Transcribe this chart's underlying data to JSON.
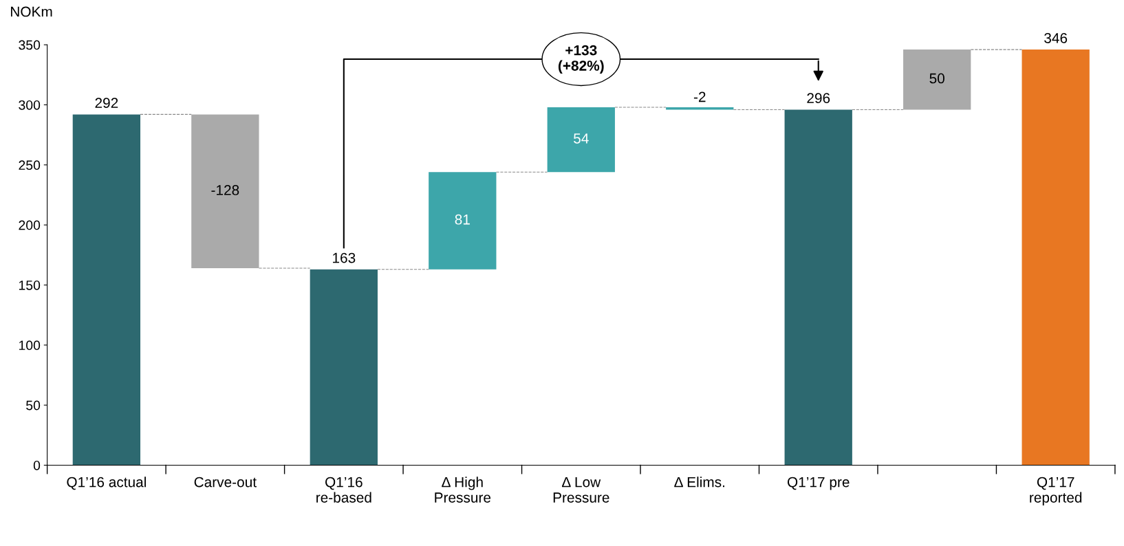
{
  "chart_data": {
    "type": "bar",
    "ylabel": "NOKm",
    "categories": [
      "Q1’16 actual",
      "Carve-out",
      "Q1’16\nre-based",
      "Δ High\nPressure",
      "Δ Low\nPressure",
      "Δ Elims.",
      "Q1’17 pre",
      null,
      "Q1’17\nreported"
    ],
    "values": [
      292,
      -128,
      163,
      81,
      54,
      -2,
      296,
      50,
      346
    ],
    "base": [
      0,
      292,
      0,
      163,
      244,
      298,
      0,
      296,
      0
    ],
    "colors": [
      "#2d6970",
      "#aaaaaa",
      "#2d6970",
      "#3da6aa",
      "#3da6aa",
      "#3da6aa",
      "#2d6970",
      "#aaaaaa",
      "#e87722"
    ],
    "data_labels": true,
    "ylim": [
      0,
      350
    ],
    "yticks": [
      0,
      50,
      100,
      150,
      200,
      250,
      300,
      350
    ],
    "grid": false,
    "annotations": [
      "+133\n(+82%)"
    ]
  }
}
